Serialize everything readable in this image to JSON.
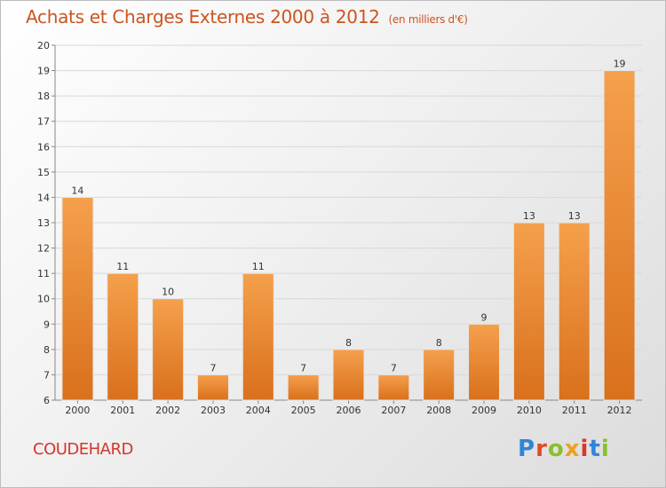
{
  "header": {
    "title": "Achats et Charges Externes 2000 à 2012",
    "unit": "(en milliers d'€)"
  },
  "footer": {
    "commune": "COUDEHARD",
    "logo": "Proxiti"
  },
  "colors": {
    "title": "#cc5520",
    "bar_light": "#f5a04c",
    "bar_dark": "#d9701c",
    "commune": "#d4362c",
    "logo_letters": [
      "#2f86d8",
      "#e0492a",
      "#8abf2c",
      "#f0a020",
      "#d8382c",
      "#2f86d8",
      "#8abf2c"
    ]
  },
  "chart_data": {
    "type": "bar",
    "title": "Achats et Charges Externes 2000 à 2012",
    "categories": [
      "2000",
      "2001",
      "2002",
      "2003",
      "2004",
      "2005",
      "2006",
      "2007",
      "2008",
      "2009",
      "2010",
      "2011",
      "2012"
    ],
    "values": [
      14,
      11,
      10,
      7,
      11,
      7,
      8,
      7,
      8,
      9,
      13,
      13,
      19
    ],
    "ylim": [
      6,
      20
    ],
    "yticks": [
      6,
      7,
      8,
      9,
      10,
      11,
      12,
      13,
      14,
      15,
      16,
      17,
      18,
      19,
      20
    ],
    "grid": "horizontal",
    "xlabel": "",
    "ylabel": ""
  }
}
